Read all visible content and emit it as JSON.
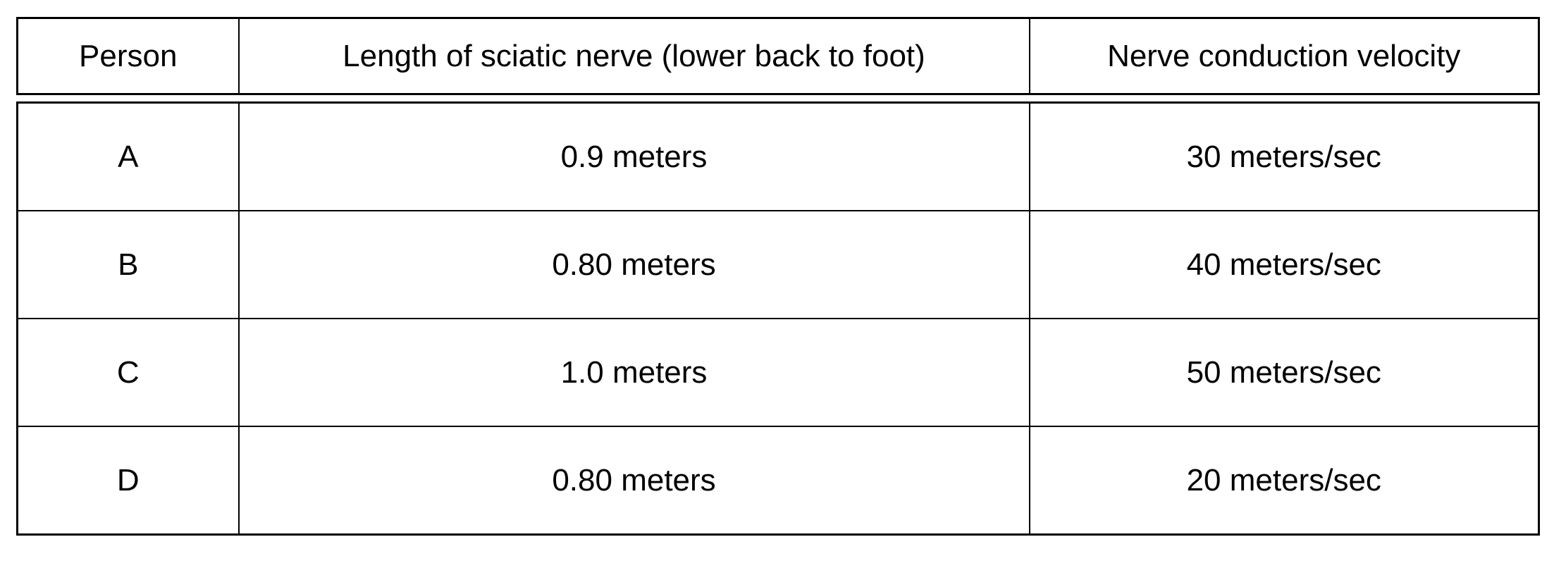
{
  "table": {
    "columns": [
      {
        "key": "person",
        "label": "Person"
      },
      {
        "key": "length",
        "label": "Length of sciatic nerve (lower back to foot)"
      },
      {
        "key": "velocity",
        "label": "Nerve conduction velocity"
      }
    ],
    "rows": [
      {
        "person": "A",
        "length": "0.9 meters",
        "velocity": "30 meters/sec"
      },
      {
        "person": "B",
        "length": "0.80 meters",
        "velocity": "40 meters/sec"
      },
      {
        "person": "C",
        "length": "1.0 meters",
        "velocity": "50 meters/sec"
      },
      {
        "person": "D",
        "length": "0.80 meters",
        "velocity": "20 meters/sec"
      }
    ]
  },
  "chart_data": {
    "type": "table",
    "columns": [
      "Person",
      "Length of sciatic nerve (lower back to foot)",
      "Nerve conduction velocity"
    ],
    "rows": [
      [
        "A",
        "0.9 meters",
        "30 meters/sec"
      ],
      [
        "B",
        "0.80 meters",
        "40 meters/sec"
      ],
      [
        "C",
        "1.0 meters",
        "50 meters/sec"
      ],
      [
        "D",
        "0.80 meters",
        "20 meters/sec"
      ]
    ]
  },
  "colors": {
    "border": "#000000",
    "background": "#ffffff",
    "text": "#000000"
  }
}
